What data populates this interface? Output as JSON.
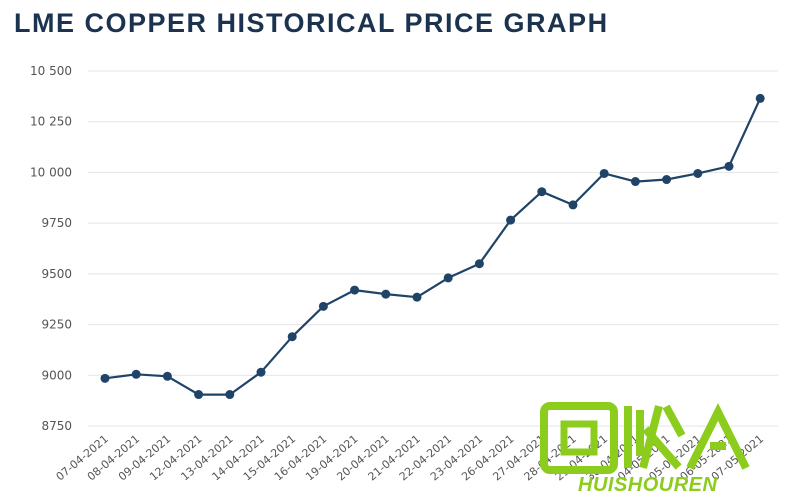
{
  "colors": {
    "line": "#1f4468",
    "title": "#1c3350",
    "grid": "#e4e4e4",
    "tick_text": "#555555",
    "watermark": "#8ccc1c"
  },
  "watermark": {
    "brand": "HUISHOUREN"
  },
  "chart_data": {
    "type": "line",
    "title": "LME COPPER HISTORICAL PRICE GRAPH",
    "xlabel": "",
    "ylabel": "",
    "ylim": [
      8750,
      10500
    ],
    "yticks": [
      8750,
      9000,
      9250,
      9500,
      9750,
      10000,
      10250,
      10500
    ],
    "ytick_labels": [
      "8750",
      "9000",
      "9250",
      "9500",
      "9750",
      "10 000",
      "10 250",
      "10 500"
    ],
    "grid": true,
    "categories": [
      "07-04-2021",
      "08-04-2021",
      "09-04-2021",
      "12-04-2021",
      "13-04-2021",
      "14-04-2021",
      "15-04-2021",
      "16-04-2021",
      "19-04-2021",
      "20-04-2021",
      "21-04-2021",
      "22-04-2021",
      "23-04-2021",
      "26-04-2021",
      "27-04-2021",
      "28-04-2021",
      "29-04-2021",
      "30-04-2021",
      "04-05-2021",
      "05-05-2021",
      "06-05-2021",
      "07-05-2021"
    ],
    "series": [
      {
        "values": [
          8985,
          9005,
          8995,
          8905,
          8905,
          9015,
          9190,
          9340,
          9420,
          9400,
          9385,
          9480,
          9550,
          9765,
          9905,
          9840,
          9995,
          9955,
          9965,
          9995,
          10030,
          10365
        ]
      }
    ]
  }
}
